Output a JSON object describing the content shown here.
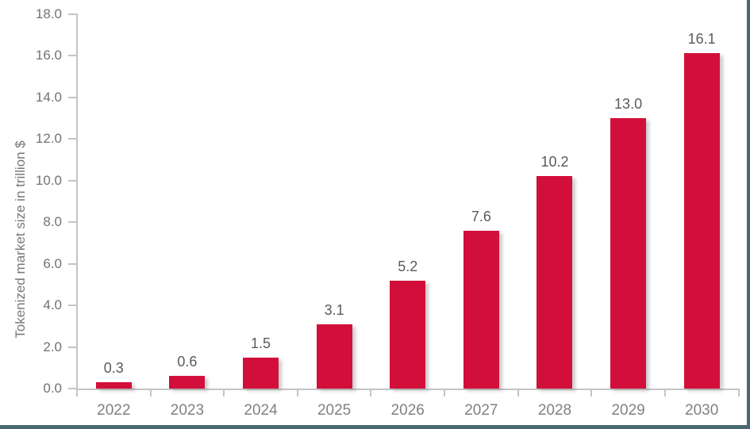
{
  "frame": {
    "background_color": "#ffffff",
    "border_color": "#4b6973",
    "border_sides": "right-bottom",
    "axis_line_color": "#c3c4c6"
  },
  "chart_data": {
    "type": "bar",
    "title": "",
    "categories": [
      "2022",
      "2023",
      "2024",
      "2025",
      "2026",
      "2027",
      "2028",
      "2029",
      "2030"
    ],
    "values": [
      0.3,
      0.6,
      1.5,
      3.1,
      5.2,
      7.6,
      10.2,
      13.0,
      16.1
    ],
    "value_labels": [
      "0.3",
      "0.6",
      "1.5",
      "3.1",
      "5.2",
      "7.6",
      "10.2",
      "13.0",
      "16.1"
    ],
    "xlabel": "",
    "ylabel": "Tokenized market size in trillion $",
    "ylim": [
      0,
      18
    ],
    "y_tick_step": 2,
    "y_tick_labels": [
      "0.0",
      "2.0",
      "4.0",
      "6.0",
      "8.0",
      "10.0",
      "12.0",
      "14.0",
      "16.0",
      "18.0"
    ],
    "bar_color": "#d20f3a",
    "value_label_color": "#595a5c",
    "category_label_color": "#7f8184",
    "tick_label_color": "#717275",
    "grid": false,
    "legend": "none"
  }
}
